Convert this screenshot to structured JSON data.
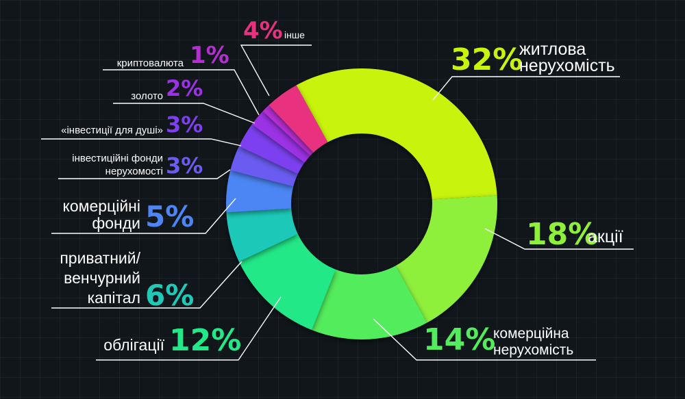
{
  "chart_data": {
    "type": "pie",
    "variant": "donut",
    "unit": "%",
    "slices": [
      {
        "value": 32,
        "pct": "32%",
        "label": [
          "житлова",
          "нерухомість"
        ],
        "color": "#c8f30b"
      },
      {
        "value": 18,
        "pct": "18%",
        "label": [
          "акції"
        ],
        "color": "#8ef03a"
      },
      {
        "value": 14,
        "pct": "14%",
        "label": [
          "комерційна",
          "нерухомість"
        ],
        "color": "#52ec5c"
      },
      {
        "value": 12,
        "pct": "12%",
        "label": [
          "облігації"
        ],
        "color": "#22e887"
      },
      {
        "value": 6,
        "pct": "6%",
        "label": [
          "приватний/",
          "венчурний",
          "капітал"
        ],
        "color": "#1ec9b8"
      },
      {
        "value": 5,
        "pct": "5%",
        "label": [
          "комерційні",
          "фонди"
        ],
        "color": "#4c86f4"
      },
      {
        "value": 3,
        "pct": "3%",
        "label": [
          "інвестиційні фонди",
          "нерухомості"
        ],
        "color": "#6a5cf0"
      },
      {
        "value": 3,
        "pct": "3%",
        "label": [
          "«інвестиції для душі»"
        ],
        "color": "#7d3ff0"
      },
      {
        "value": 2,
        "pct": "2%",
        "label": [
          "золото"
        ],
        "color": "#9b33e4"
      },
      {
        "value": 1,
        "pct": "1%",
        "label": [
          "криптовалюта"
        ],
        "color": "#b52ed2"
      },
      {
        "value": 4,
        "pct": "4%",
        "label": [
          "інше"
        ],
        "color": "#e8317f"
      }
    ]
  }
}
